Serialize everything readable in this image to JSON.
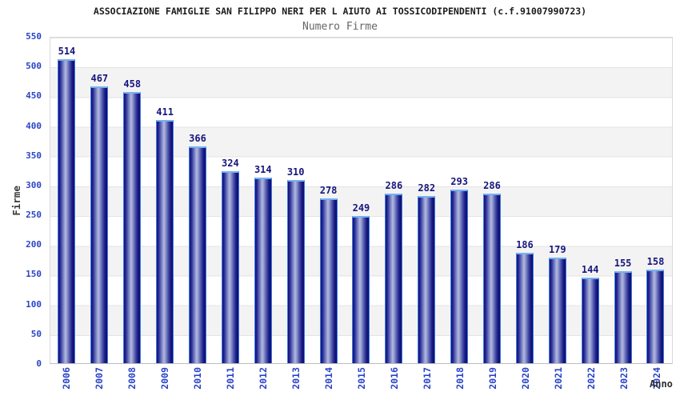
{
  "chart_data": {
    "type": "bar",
    "title": "ASSOCIAZIONE FAMIGLIE SAN FILIPPO NERI PER L AIUTO AI TOSSICODIPENDENTI (c.f.91007990723)",
    "subtitle": "Numero Firme",
    "xlabel": "Anno",
    "ylabel": "Firme",
    "categories": [
      "2006",
      "2007",
      "2008",
      "2009",
      "2010",
      "2011",
      "2012",
      "2013",
      "2014",
      "2015",
      "2016",
      "2017",
      "2018",
      "2019",
      "2020",
      "2021",
      "2022",
      "2023",
      "2024"
    ],
    "values": [
      514,
      467,
      458,
      411,
      366,
      324,
      314,
      310,
      278,
      249,
      286,
      282,
      293,
      286,
      186,
      179,
      144,
      155,
      158
    ],
    "ylim": [
      0,
      550
    ],
    "yticks": [
      550,
      500,
      450,
      400,
      350,
      300,
      250,
      200,
      150,
      100,
      50,
      0
    ],
    "grid": "horizontal gridlines every 50 units with alternating white/light-grey bands",
    "legend": "none",
    "value_labels": "above each bar",
    "colors": {
      "bar_fill_dark": "#14148c",
      "bar_fill_light": "#b2b8de",
      "bar_border": "#3d7de8",
      "bar_cap": "#74b2f2",
      "tick_label": "#2b44c8",
      "value_label": "#16167d",
      "title": "#1c1c1c",
      "subtitle": "#666666",
      "axis_label": "#3a3a3a",
      "band_grey": "#f3f3f3",
      "gridline": "#e3e3e3"
    }
  }
}
